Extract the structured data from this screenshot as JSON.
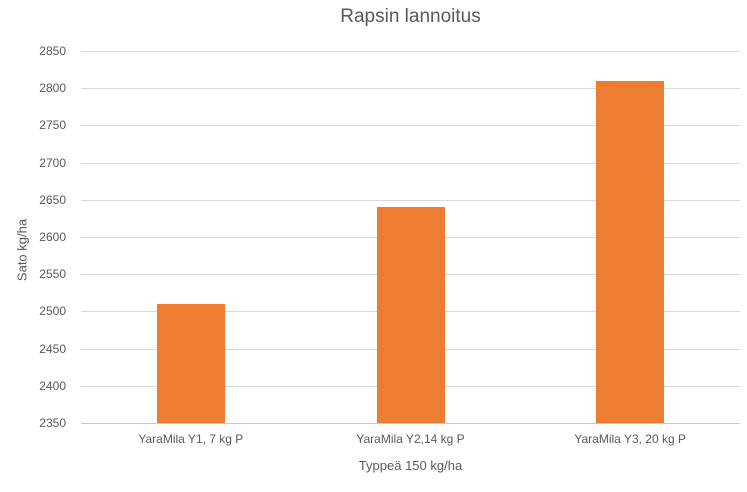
{
  "chart_data": {
    "type": "bar",
    "title": "Rapsin lannoitus",
    "categories": [
      "YaraMila Y1, 7 kg P",
      "YaraMila Y2,14 kg P",
      "YaraMila Y3, 20 kg P"
    ],
    "values": [
      2510,
      2640,
      2810
    ],
    "xlabel": "Typpeä 150 kg/ha",
    "ylabel": "Sato kg/ha",
    "ylim": [
      2350,
      2850
    ],
    "ytick_step": 50,
    "yticks": [
      2350,
      2400,
      2450,
      2500,
      2550,
      2600,
      2650,
      2700,
      2750,
      2800,
      2850
    ],
    "grid": "on",
    "legend": "none",
    "colors": {
      "bar": "#ED7D31",
      "gridline": "#D9D9D9",
      "axis_line": "#C9C7C7",
      "text": "#595959",
      "background": "#FFFFFF"
    }
  }
}
